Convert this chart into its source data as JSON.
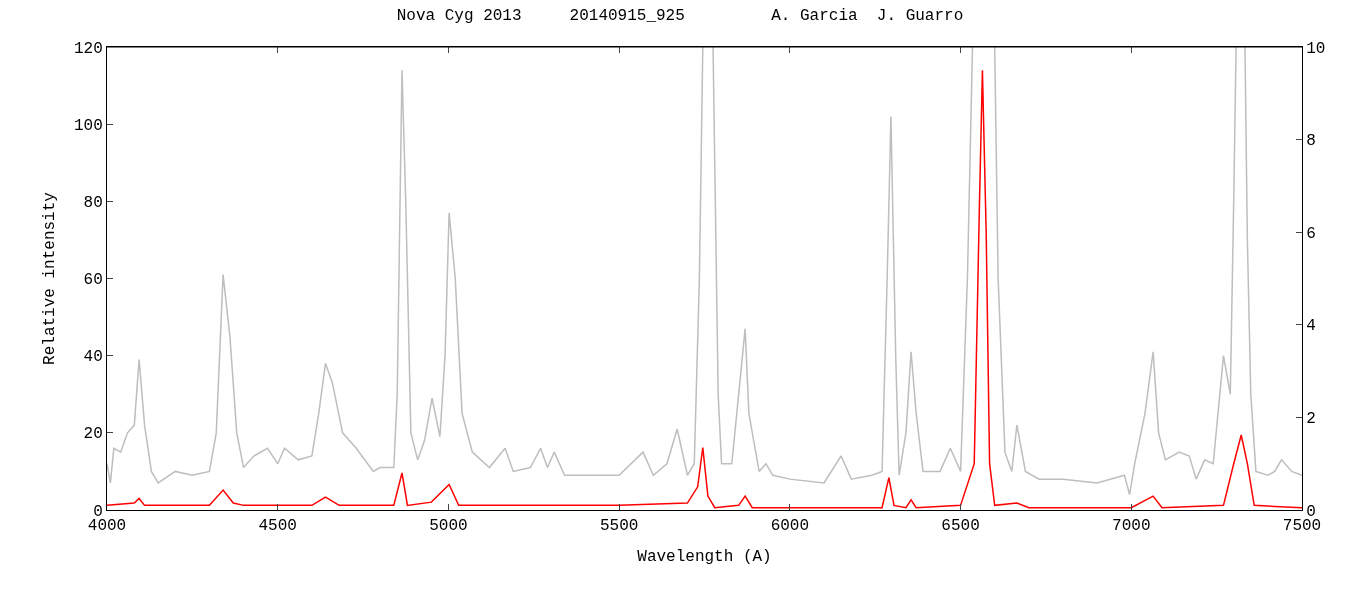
{
  "chart_data": {
    "type": "line",
    "title": "Nova Cyg 2013     20140915_925         A. Garcia  J. Guarro",
    "xlabel": "Wavelength (A)",
    "ylabel": "Relative intensity",
    "xlim": [
      4000,
      7500
    ],
    "xticks": [
      4000,
      4500,
      5000,
      5500,
      6000,
      6500,
      7000,
      7500
    ],
    "ylim": [
      0,
      120
    ],
    "yticks": [
      0,
      20,
      40,
      60,
      80,
      100,
      120
    ],
    "y2lim": [
      0,
      10
    ],
    "y2ticks": [
      0,
      2,
      4,
      6,
      8,
      10
    ],
    "marker": "none",
    "line_style": "solid",
    "series": [
      {
        "color": "#bebebe",
        "x": [
          4000,
          4010,
          4020,
          4040,
          4060,
          4070,
          4080,
          4094,
          4110,
          4130,
          4150,
          4200,
          4250,
          4300,
          4320,
          4340,
          4360,
          4380,
          4400,
          4430,
          4470,
          4500,
          4520,
          4560,
          4600,
          4620,
          4640,
          4660,
          4690,
          4730,
          4780,
          4800,
          4840,
          4850,
          4864,
          4875,
          4890,
          4910,
          4930,
          4952,
          4975,
          4990,
          5002,
          5020,
          5040,
          5070,
          5120,
          5166,
          5190,
          5240,
          5270,
          5290,
          5310,
          5340,
          5400,
          5450,
          5500,
          5570,
          5600,
          5640,
          5670,
          5700,
          5720,
          5735,
          5745,
          5760,
          5775,
          5790,
          5800,
          5830,
          5869,
          5880,
          5910,
          5930,
          5950,
          6000,
          6100,
          6150,
          6180,
          6240,
          6270,
          6285,
          6296,
          6310,
          6320,
          6340,
          6355,
          6370,
          6390,
          6440,
          6470,
          6500,
          6520,
          6535,
          6570,
          6600,
          6610,
          6630,
          6650,
          6665,
          6690,
          6730,
          6800,
          6900,
          6980,
          6995,
          7010,
          7040,
          7064,
          7080,
          7100,
          7140,
          7170,
          7190,
          7200,
          7215,
          7240,
          7270,
          7290,
          7300,
          7307,
          7320,
          7333,
          7340,
          7350,
          7365,
          7400,
          7420,
          7440,
          7470,
          7500
        ],
        "values": [
          12,
          7,
          16,
          15,
          20,
          21,
          22,
          39,
          22,
          10,
          7,
          10,
          9,
          10,
          20,
          61,
          45,
          20,
          11,
          14,
          16,
          12,
          16,
          13,
          14,
          25,
          38,
          33,
          20,
          16,
          10,
          11,
          11,
          30,
          114,
          80,
          20,
          13,
          18,
          29,
          19,
          40,
          77,
          60,
          25,
          15,
          11,
          16,
          10,
          11,
          16,
          11,
          15,
          9,
          9,
          9,
          9,
          15,
          9,
          12,
          21,
          9,
          12,
          60,
          120,
          null,
          120,
          30,
          12,
          12,
          47,
          25,
          10,
          12,
          9,
          8,
          7,
          14,
          8,
          9,
          10,
          60,
          102,
          40,
          9,
          20,
          41,
          25,
          10,
          10,
          16,
          10,
          60,
          120,
          null,
          120,
          60,
          15,
          10,
          22,
          10,
          8,
          8,
          7,
          9,
          4,
          12,
          25,
          41,
          20,
          13,
          15,
          14,
          8,
          10,
          13,
          12,
          40,
          30,
          80,
          120,
          null,
          120,
          70,
          30,
          10,
          9,
          10,
          13,
          10,
          9
        ]
      },
      {
        "color": "#ff0000",
        "axis": "y2",
        "x": [
          4000,
          4080,
          4094,
          4110,
          4300,
          4340,
          4370,
          4400,
          4600,
          4640,
          4680,
          4840,
          4864,
          4880,
          4950,
          5002,
          5030,
          5500,
          5700,
          5730,
          5745,
          5760,
          5780,
          5850,
          5869,
          5890,
          6270,
          6290,
          6305,
          6340,
          6355,
          6370,
          6500,
          6540,
          6555,
          6564,
          6575,
          6585,
          6600,
          6665,
          6700,
          7000,
          7064,
          7090,
          7270,
          7300,
          7322,
          7340,
          7360,
          7500
        ],
        "values": [
          0.1,
          0.15,
          0.25,
          0.1,
          0.1,
          0.43,
          0.15,
          0.1,
          0.1,
          0.28,
          0.1,
          0.1,
          0.8,
          0.1,
          0.17,
          0.55,
          0.1,
          0.1,
          0.15,
          0.5,
          1.35,
          0.3,
          0.05,
          0.1,
          0.3,
          0.05,
          0.05,
          0.7,
          0.1,
          0.05,
          0.22,
          0.05,
          0.1,
          1.0,
          6.5,
          9.5,
          6.0,
          1.0,
          0.1,
          0.15,
          0.05,
          0.05,
          0.3,
          0.05,
          0.1,
          1.0,
          1.62,
          1.0,
          0.1,
          0.05
        ]
      }
    ]
  }
}
